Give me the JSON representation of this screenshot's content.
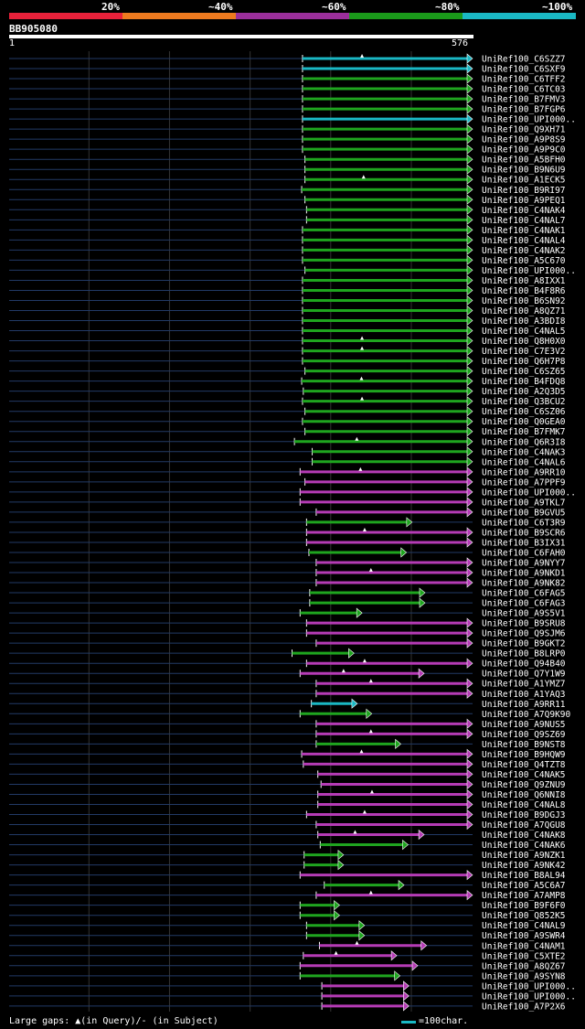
{
  "legend": [
    {
      "label": "20%",
      "color": "#e8213a"
    },
    {
      "label": "~40%",
      "color": "#ee7a1f"
    },
    {
      "label": "~60%",
      "color": "#9b2f9b"
    },
    {
      "label": "~80%",
      "color": "#1a9a1a"
    },
    {
      "label": "~100%",
      "color": "#1ab8c4"
    }
  ],
  "query": {
    "title": "BB905080",
    "start": "1",
    "end": "576"
  },
  "footer": {
    "gaps_text": "Large gaps: ▲(in Query)/- (in Subject)",
    "scale_text": "=100char."
  },
  "chart_data": {
    "type": "alignment",
    "query_length": 576,
    "hits": [
      {
        "name": "UniRef100_C6SZZ7",
        "start": 365,
        "end": 576,
        "identity": 100,
        "gap": true
      },
      {
        "name": "UniRef100_C6SXF9",
        "start": 365,
        "end": 576,
        "identity": 100,
        "gap": false
      },
      {
        "name": "UniRef100_C6TFF2",
        "start": 365,
        "end": 576,
        "identity": 80,
        "gap": false
      },
      {
        "name": "UniRef100_C6TC03",
        "start": 365,
        "end": 576,
        "identity": 80,
        "gap": false
      },
      {
        "name": "UniRef100_B7FMV3",
        "start": 365,
        "end": 576,
        "identity": 80,
        "gap": false
      },
      {
        "name": "UniRef100_B7FGP6",
        "start": 365,
        "end": 576,
        "identity": 80,
        "gap": false
      },
      {
        "name": "UniRef100_UPI000..",
        "start": 365,
        "end": 576,
        "identity": 100,
        "gap": false
      },
      {
        "name": "UniRef100_Q9XH71",
        "start": 365,
        "end": 576,
        "identity": 80,
        "gap": false
      },
      {
        "name": "UniRef100_A9P8S9",
        "start": 365,
        "end": 576,
        "identity": 80,
        "gap": false
      },
      {
        "name": "UniRef100_A9P9C0",
        "start": 365,
        "end": 576,
        "identity": 80,
        "gap": false
      },
      {
        "name": "UniRef100_A5BFH0",
        "start": 368,
        "end": 576,
        "identity": 80,
        "gap": false
      },
      {
        "name": "UniRef100_B9N6U9",
        "start": 368,
        "end": 576,
        "identity": 80,
        "gap": false
      },
      {
        "name": "UniRef100_A1ECK5",
        "start": 368,
        "end": 576,
        "identity": 80,
        "gap": true
      },
      {
        "name": "UniRef100_B9RI97",
        "start": 364,
        "end": 576,
        "identity": 80,
        "gap": false
      },
      {
        "name": "UniRef100_A9PEQ1",
        "start": 368,
        "end": 576,
        "identity": 80,
        "gap": false
      },
      {
        "name": "UniRef100_C4NAK4",
        "start": 370,
        "end": 576,
        "identity": 80,
        "gap": false
      },
      {
        "name": "UniRef100_C4NAL7",
        "start": 370,
        "end": 576,
        "identity": 80,
        "gap": false
      },
      {
        "name": "UniRef100_C4NAK1",
        "start": 365,
        "end": 576,
        "identity": 80,
        "gap": false
      },
      {
        "name": "UniRef100_C4NAL4",
        "start": 365,
        "end": 576,
        "identity": 80,
        "gap": false
      },
      {
        "name": "UniRef100_C4NAK2",
        "start": 365,
        "end": 576,
        "identity": 80,
        "gap": false
      },
      {
        "name": "UniRef100_A5C670",
        "start": 365,
        "end": 576,
        "identity": 80,
        "gap": false
      },
      {
        "name": "UniRef100_UPI000..",
        "start": 368,
        "end": 576,
        "identity": 80,
        "gap": false
      },
      {
        "name": "UniRef100_A8IXX1",
        "start": 365,
        "end": 576,
        "identity": 80,
        "gap": false
      },
      {
        "name": "UniRef100_B4F8R6",
        "start": 365,
        "end": 576,
        "identity": 80,
        "gap": false
      },
      {
        "name": "UniRef100_B6SN92",
        "start": 365,
        "end": 576,
        "identity": 80,
        "gap": false
      },
      {
        "name": "UniRef100_A8QZ71",
        "start": 365,
        "end": 576,
        "identity": 80,
        "gap": false
      },
      {
        "name": "UniRef100_A3BDI8",
        "start": 365,
        "end": 576,
        "identity": 80,
        "gap": false
      },
      {
        "name": "UniRef100_C4NAL5",
        "start": 365,
        "end": 576,
        "identity": 80,
        "gap": false
      },
      {
        "name": "UniRef100_Q8H0X0",
        "start": 365,
        "end": 576,
        "identity": 80,
        "gap": true
      },
      {
        "name": "UniRef100_C7E3V2",
        "start": 365,
        "end": 576,
        "identity": 80,
        "gap": true
      },
      {
        "name": "UniRef100_Q6H7P8",
        "start": 365,
        "end": 576,
        "identity": 80,
        "gap": false
      },
      {
        "name": "UniRef100_C6SZ65",
        "start": 368,
        "end": 576,
        "identity": 80,
        "gap": false
      },
      {
        "name": "UniRef100_B4FDQ8",
        "start": 364,
        "end": 576,
        "identity": 80,
        "gap": true
      },
      {
        "name": "UniRef100_A2Q3D5",
        "start": 366,
        "end": 576,
        "identity": 80,
        "gap": false
      },
      {
        "name": "UniRef100_Q3BCU2",
        "start": 365,
        "end": 576,
        "identity": 80,
        "gap": true
      },
      {
        "name": "UniRef100_C6SZ06",
        "start": 368,
        "end": 576,
        "identity": 80,
        "gap": false
      },
      {
        "name": "UniRef100_Q0GEA0",
        "start": 365,
        "end": 576,
        "identity": 80,
        "gap": false
      },
      {
        "name": "UniRef100_B7FMK7",
        "start": 368,
        "end": 576,
        "identity": 80,
        "gap": false
      },
      {
        "name": "UniRef100_Q6R3I8",
        "start": 355,
        "end": 576,
        "identity": 80,
        "gap": true
      },
      {
        "name": "UniRef100_C4NAK3",
        "start": 377,
        "end": 576,
        "identity": 80,
        "gap": false
      },
      {
        "name": "UniRef100_C4NAL6",
        "start": 377,
        "end": 576,
        "identity": 80,
        "gap": false
      },
      {
        "name": "UniRef100_A9RR10",
        "start": 362,
        "end": 576,
        "identity": 60,
        "gap": true
      },
      {
        "name": "UniRef100_A7PPF9",
        "start": 368,
        "end": 576,
        "identity": 60,
        "gap": false
      },
      {
        "name": "UniRef100_UPI000..",
        "start": 362,
        "end": 576,
        "identity": 60,
        "gap": false
      },
      {
        "name": "UniRef100_A9TKL7",
        "start": 362,
        "end": 576,
        "identity": 60,
        "gap": false
      },
      {
        "name": "UniRef100_B9GVU5",
        "start": 382,
        "end": 576,
        "identity": 60,
        "gap": false
      },
      {
        "name": "UniRef100_C6T3R9",
        "start": 370,
        "end": 501,
        "identity": 80,
        "gap": false
      },
      {
        "name": "UniRef100_B9SCR6",
        "start": 370,
        "end": 576,
        "identity": 60,
        "gap": true
      },
      {
        "name": "UniRef100_B3IX31",
        "start": 370,
        "end": 576,
        "identity": 60,
        "gap": false
      },
      {
        "name": "UniRef100_C6FAH0",
        "start": 373,
        "end": 494,
        "identity": 80,
        "gap": false
      },
      {
        "name": "UniRef100_A9NYY7",
        "start": 382,
        "end": 576,
        "identity": 60,
        "gap": false
      },
      {
        "name": "UniRef100_A9NKD1",
        "start": 382,
        "end": 576,
        "identity": 60,
        "gap": true
      },
      {
        "name": "UniRef100_A9NK82",
        "start": 382,
        "end": 576,
        "identity": 60,
        "gap": false
      },
      {
        "name": "UniRef100_C6FAG5",
        "start": 374,
        "end": 517,
        "identity": 80,
        "gap": false
      },
      {
        "name": "UniRef100_C6FAG3",
        "start": 374,
        "end": 517,
        "identity": 80,
        "gap": false
      },
      {
        "name": "UniRef100_A9S5V1",
        "start": 362,
        "end": 439,
        "identity": 80,
        "gap": false
      },
      {
        "name": "UniRef100_B9SRU8",
        "start": 370,
        "end": 576,
        "identity": 60,
        "gap": false
      },
      {
        "name": "UniRef100_Q9SJM6",
        "start": 370,
        "end": 576,
        "identity": 60,
        "gap": false
      },
      {
        "name": "UniRef100_B9GKT2",
        "start": 382,
        "end": 576,
        "identity": 60,
        "gap": false
      },
      {
        "name": "UniRef100_B8LRP0",
        "start": 352,
        "end": 429,
        "identity": 80,
        "gap": false
      },
      {
        "name": "UniRef100_Q94B40",
        "start": 370,
        "end": 576,
        "identity": 60,
        "gap": true
      },
      {
        "name": "UniRef100_Q7Y1W9",
        "start": 362,
        "end": 516,
        "identity": 60,
        "gap": true
      },
      {
        "name": "UniRef100_A1YMZ7",
        "start": 382,
        "end": 576,
        "identity": 60,
        "gap": true
      },
      {
        "name": "UniRef100_A1YAQ3",
        "start": 382,
        "end": 576,
        "identity": 60,
        "gap": false
      },
      {
        "name": "UniRef100_A9RR11",
        "start": 376,
        "end": 433,
        "identity": 100,
        "gap": false
      },
      {
        "name": "UniRef100_A7Q9K90",
        "start": 362,
        "end": 451,
        "identity": 80,
        "gap": false
      },
      {
        "name": "UniRef100_A9NUS5",
        "start": 382,
        "end": 576,
        "identity": 60,
        "gap": false
      },
      {
        "name": "UniRef100_Q9SZ69",
        "start": 382,
        "end": 576,
        "identity": 60,
        "gap": true
      },
      {
        "name": "UniRef100_B9NST8",
        "start": 382,
        "end": 487,
        "identity": 80,
        "gap": false
      },
      {
        "name": "UniRef100_B9HQW9",
        "start": 364,
        "end": 576,
        "identity": 60,
        "gap": true
      },
      {
        "name": "UniRef100_Q4TZT8",
        "start": 366,
        "end": 576,
        "identity": 60,
        "gap": false
      },
      {
        "name": "UniRef100_C4NAK5",
        "start": 384,
        "end": 576,
        "identity": 60,
        "gap": false
      },
      {
        "name": "UniRef100_Q9ZNU9",
        "start": 388,
        "end": 576,
        "identity": 60,
        "gap": false
      },
      {
        "name": "UniRef100_Q6NNI8",
        "start": 384,
        "end": 576,
        "identity": 60,
        "gap": true
      },
      {
        "name": "UniRef100_C4NAL8",
        "start": 384,
        "end": 576,
        "identity": 60,
        "gap": false
      },
      {
        "name": "UniRef100_B9DGJ3",
        "start": 370,
        "end": 576,
        "identity": 60,
        "gap": true
      },
      {
        "name": "UniRef100_A7QGU8",
        "start": 382,
        "end": 576,
        "identity": 60,
        "gap": false
      },
      {
        "name": "UniRef100_C4NAK8",
        "start": 384,
        "end": 516,
        "identity": 60,
        "gap": true
      },
      {
        "name": "UniRef100_C4NAK6",
        "start": 387,
        "end": 496,
        "identity": 80,
        "gap": false
      },
      {
        "name": "UniRef100_A9NZK1",
        "start": 367,
        "end": 416,
        "identity": 80,
        "gap": false
      },
      {
        "name": "UniRef100_A9NK42",
        "start": 367,
        "end": 416,
        "identity": 80,
        "gap": false
      },
      {
        "name": "UniRef100_B8AL94",
        "start": 362,
        "end": 576,
        "identity": 60,
        "gap": false
      },
      {
        "name": "UniRef100_A5C6A7",
        "start": 392,
        "end": 491,
        "identity": 80,
        "gap": false
      },
      {
        "name": "UniRef100_A7AMP8",
        "start": 382,
        "end": 576,
        "identity": 60,
        "gap": true
      },
      {
        "name": "UniRef100_B9F6F0",
        "start": 362,
        "end": 411,
        "identity": 80,
        "gap": false
      },
      {
        "name": "UniRef100_Q852K5",
        "start": 362,
        "end": 411,
        "identity": 80,
        "gap": false
      },
      {
        "name": "UniRef100_C4NAL9",
        "start": 370,
        "end": 442,
        "identity": 80,
        "gap": false
      },
      {
        "name": "UniRef100_A9SWR4",
        "start": 370,
        "end": 442,
        "identity": 80,
        "gap": false
      },
      {
        "name": "UniRef100_C4NAM1",
        "start": 386,
        "end": 519,
        "identity": 60,
        "gap": true
      },
      {
        "name": "UniRef100_C5XTE2",
        "start": 366,
        "end": 482,
        "identity": 60,
        "gap": true
      },
      {
        "name": "UniRef100_A8QZ67",
        "start": 362,
        "end": 508,
        "identity": 60,
        "gap": false
      },
      {
        "name": "UniRef100_A9SYN8",
        "start": 362,
        "end": 486,
        "identity": 80,
        "gap": false
      },
      {
        "name": "UniRef100_UPI000..",
        "start": 389,
        "end": 497,
        "identity": 60,
        "gap": false
      },
      {
        "name": "UniRef100_UPI000..",
        "start": 389,
        "end": 497,
        "identity": 60,
        "gap": false
      },
      {
        "name": "UniRef100_A7P2X6",
        "start": 389,
        "end": 497,
        "identity": 60,
        "gap": false
      }
    ]
  }
}
